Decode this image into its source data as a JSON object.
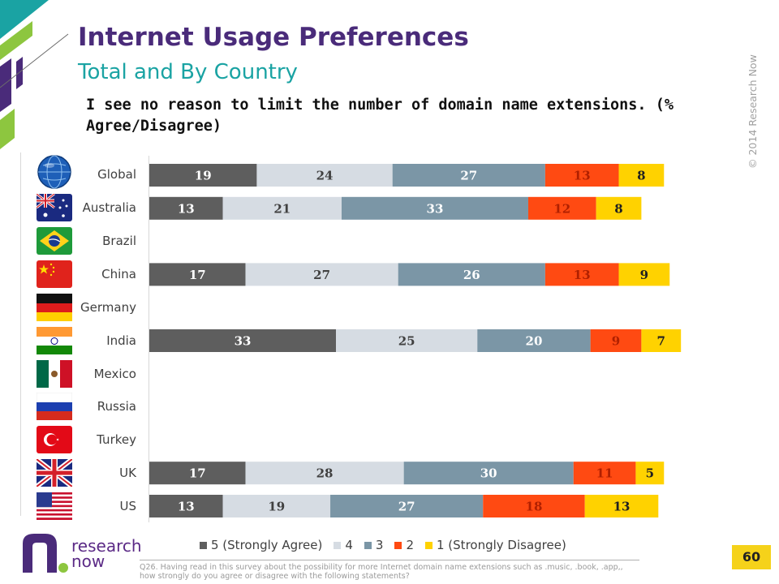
{
  "header": {
    "title": "Internet Usage Preferences",
    "subtitle": "Total and By Country",
    "question": "I see no reason to limit the number of domain name extensions. (% Agree/Disagree)",
    "copyright": "© 2014 Research Now"
  },
  "brand": {
    "logo_line1": "research",
    "logo_line2": "now",
    "colors": {
      "purple": "#4a2b7a",
      "teal": "#1aa3a3",
      "green": "#8dc63f"
    }
  },
  "footer": {
    "footnote": "Q26. Having read in this survey about the possibility for more Internet domain name extensions such as .music, .book, .app,, how strongly do you agree or disagree with the following statements?",
    "page_number": "60"
  },
  "flags": [
    "globe-icon",
    "australia-flag-icon",
    "brazil-flag-icon",
    "china-flag-icon",
    "germany-flag-icon",
    "india-flag-icon",
    "mexico-flag-icon",
    "russia-flag-icon",
    "turkey-flag-icon",
    "uk-flag-icon",
    "us-flag-icon"
  ],
  "chart_data": {
    "type": "bar",
    "orientation": "horizontal",
    "stacked": true,
    "categories": [
      "Global",
      "Australia",
      "Brazil",
      "China",
      "Germany",
      "India",
      "Mexico",
      "Russia",
      "Turkey",
      "UK",
      "US"
    ],
    "series": [
      {
        "name": "5 (Strongly Agree)",
        "color": "#5e5e5e",
        "label_color": "#ffffff",
        "values": [
          19,
          13,
          null,
          17,
          null,
          33,
          null,
          null,
          null,
          17,
          13
        ]
      },
      {
        "name": "4",
        "color": "#d6dce3",
        "label_color": "#404040",
        "values": [
          24,
          21,
          null,
          27,
          null,
          25,
          null,
          null,
          null,
          28,
          19
        ]
      },
      {
        "name": "3",
        "color": "#7b96a6",
        "label_color": "#ffffff",
        "values": [
          27,
          33,
          null,
          26,
          null,
          20,
          null,
          null,
          null,
          30,
          27
        ]
      },
      {
        "name": "2",
        "color": "#ff4a12",
        "label_color": "#b02000",
        "values": [
          13,
          12,
          null,
          13,
          null,
          9,
          null,
          null,
          null,
          11,
          18
        ]
      },
      {
        "name": "1 (Strongly Disagree)",
        "color": "#ffd200",
        "label_color": "#202020",
        "values": [
          8,
          8,
          null,
          9,
          null,
          7,
          null,
          null,
          null,
          5,
          13
        ]
      }
    ],
    "xlim": [
      0,
      100
    ],
    "legend_position": "bottom",
    "grid": false
  }
}
